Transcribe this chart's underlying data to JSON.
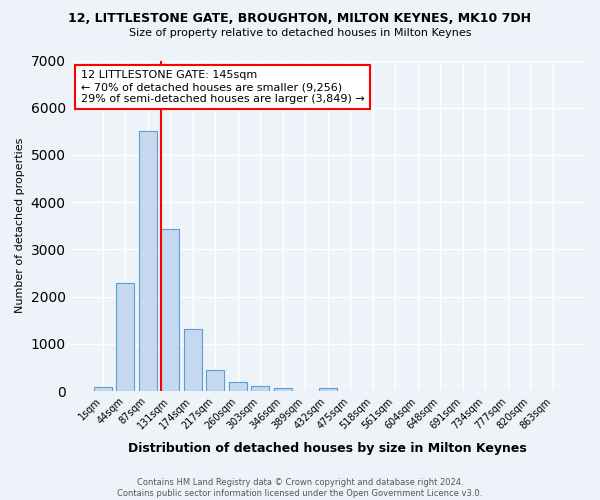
{
  "title": "12, LITTLESTONE GATE, BROUGHTON, MILTON KEYNES, MK10 7DH",
  "subtitle": "Size of property relative to detached houses in Milton Keynes",
  "xlabel": "Distribution of detached houses by size in Milton Keynes",
  "ylabel": "Number of detached properties",
  "footer_line1": "Contains HM Land Registry data © Crown copyright and database right 2024.",
  "footer_line2": "Contains public sector information licensed under the Open Government Licence v3.0.",
  "bar_labels": [
    "1sqm",
    "44sqm",
    "87sqm",
    "131sqm",
    "174sqm",
    "217sqm",
    "260sqm",
    "303sqm",
    "346sqm",
    "389sqm",
    "432sqm",
    "475sqm",
    "518sqm",
    "561sqm",
    "604sqm",
    "648sqm",
    "691sqm",
    "734sqm",
    "777sqm",
    "820sqm",
    "863sqm"
  ],
  "bar_values": [
    75,
    2280,
    5500,
    3430,
    1320,
    450,
    185,
    100,
    70,
    0,
    65,
    0,
    0,
    0,
    0,
    0,
    0,
    0,
    0,
    0,
    0
  ],
  "bar_color": "#c5d8f0",
  "bar_edge_color": "#5a9fd4",
  "background_color": "#eef3fa",
  "grid_color": "#ffffff",
  "vline_x_index": 3,
  "vline_color": "red",
  "annotation_text": "12 LITTLESTONE GATE: 145sqm\n← 70% of detached houses are smaller (9,256)\n29% of semi-detached houses are larger (3,849) →",
  "annotation_box_color": "white",
  "annotation_box_edge_color": "red",
  "ylim": [
    0,
    7000
  ],
  "yticks": [
    0,
    1000,
    2000,
    3000,
    4000,
    5000,
    6000,
    7000
  ]
}
